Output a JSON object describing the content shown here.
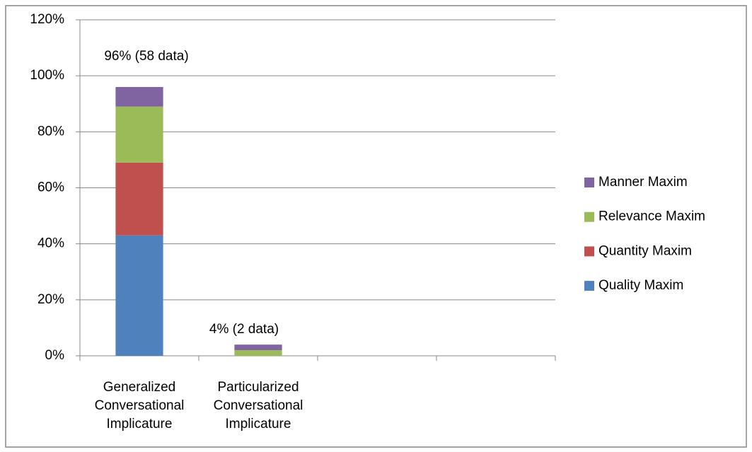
{
  "chart_data": {
    "type": "stacked-bar",
    "categories": [
      "Generalized Conversational Implicature",
      "Particularized Conversational Implicature",
      null,
      null
    ],
    "series": [
      {
        "name": "Quality Maxim",
        "color": "#4f81bd",
        "values": [
          43,
          0,
          null,
          null
        ]
      },
      {
        "name": "Quantity Maxim",
        "color": "#c0504d",
        "values": [
          26,
          0,
          null,
          null
        ]
      },
      {
        "name": "Relevance Maxim",
        "color": "#9bbb59",
        "values": [
          20,
          2,
          null,
          null
        ]
      },
      {
        "name": "Manner Maxim",
        "color": "#8064a2",
        "values": [
          7,
          2,
          null,
          null
        ]
      }
    ],
    "annotations": [
      "96% (58 data)",
      "4% (2 data)"
    ],
    "ylim": [
      0,
      120
    ],
    "yticks": [
      {
        "value": 0,
        "label": "0%"
      },
      {
        "value": 20,
        "label": "20%"
      },
      {
        "value": 40,
        "label": "40%"
      },
      {
        "value": 60,
        "label": "60%"
      },
      {
        "value": 80,
        "label": "80%"
      },
      {
        "value": 100,
        "label": "100%"
      },
      {
        "value": 120,
        "label": "120%"
      }
    ],
    "grid": true,
    "legend": "right"
  }
}
